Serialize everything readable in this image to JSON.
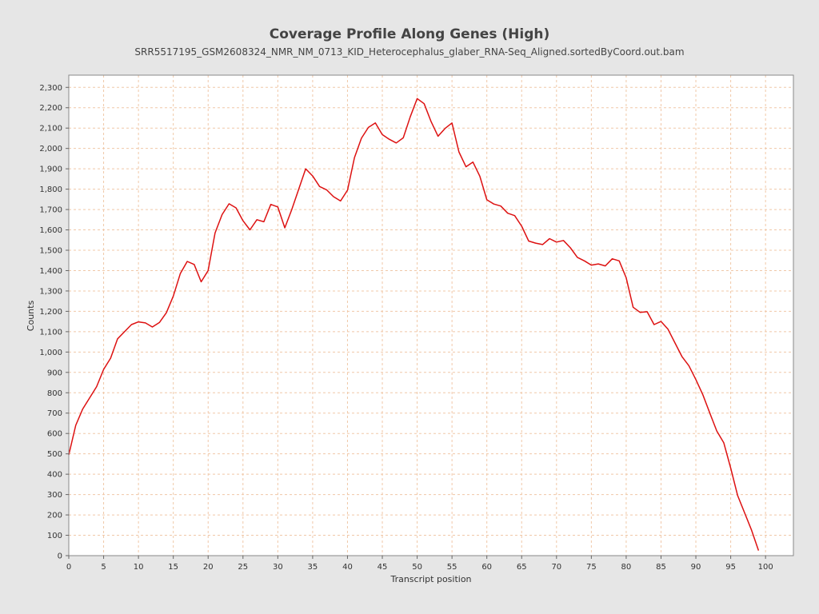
{
  "chart_data": {
    "type": "line",
    "title": "Coverage Profile Along Genes (High)",
    "subtitle": "SRR5517195_GSM2608324_NMR_NM_0713_KID_Heterocephalus_glaber_RNA-Seq_Aligned.sortedByCoord.out.bam",
    "xlabel": "Transcript position",
    "ylabel": "Counts",
    "xlim": [
      0,
      104
    ],
    "ylim": [
      0,
      2360
    ],
    "xticks": [
      0,
      5,
      10,
      15,
      20,
      25,
      30,
      35,
      40,
      45,
      50,
      55,
      60,
      65,
      70,
      75,
      80,
      85,
      90,
      95,
      100
    ],
    "xtick_labels": [
      "0",
      "5",
      "10",
      "15",
      "20",
      "25",
      "30",
      "35",
      "40",
      "45",
      "50",
      "55",
      "60",
      "65",
      "70",
      "75",
      "80",
      "85",
      "90",
      "95",
      "100"
    ],
    "yticks": [
      0,
      100,
      200,
      300,
      400,
      500,
      600,
      700,
      800,
      900,
      1000,
      1100,
      1200,
      1300,
      1400,
      1500,
      1600,
      1700,
      1800,
      1900,
      2000,
      2100,
      2200,
      2300
    ],
    "ytick_labels": [
      "0",
      "100",
      "200",
      "300",
      "400",
      "500",
      "600",
      "700",
      "800",
      "900",
      "1,000",
      "1,100",
      "1,200",
      "1,300",
      "1,400",
      "1,500",
      "1,600",
      "1,700",
      "1,800",
      "1,900",
      "2,000",
      "2,100",
      "2,200",
      "2,300"
    ],
    "grid": true,
    "line_color": "#dd1111",
    "grid_color": "#f0c8a8",
    "x": [
      0,
      1,
      2,
      3,
      4,
      5,
      6,
      7,
      8,
      9,
      10,
      11,
      12,
      13,
      14,
      15,
      16,
      17,
      18,
      19,
      20,
      21,
      22,
      23,
      24,
      25,
      26,
      27,
      28,
      29,
      30,
      31,
      32,
      33,
      34,
      35,
      36,
      37,
      38,
      39,
      40,
      41,
      42,
      43,
      44,
      45,
      46,
      47,
      48,
      49,
      50,
      51,
      52,
      53,
      54,
      55,
      56,
      57,
      58,
      59,
      60,
      61,
      62,
      63,
      64,
      65,
      66,
      67,
      68,
      69,
      70,
      71,
      72,
      73,
      74,
      75,
      76,
      77,
      78,
      79,
      80,
      81,
      82,
      83,
      84,
      85,
      86,
      87,
      88,
      89,
      90,
      91,
      92,
      93,
      94,
      95,
      96,
      97,
      98,
      99
    ],
    "values": [
      495,
      640,
      720,
      775,
      830,
      915,
      970,
      1065,
      1100,
      1135,
      1148,
      1143,
      1123,
      1145,
      1193,
      1275,
      1385,
      1445,
      1430,
      1345,
      1400,
      1585,
      1675,
      1728,
      1708,
      1645,
      1600,
      1650,
      1640,
      1725,
      1713,
      1610,
      1700,
      1800,
      1900,
      1865,
      1813,
      1797,
      1763,
      1742,
      1795,
      1955,
      2050,
      2103,
      2125,
      2068,
      2045,
      2027,
      2052,
      2155,
      2245,
      2220,
      2132,
      2060,
      2098,
      2125,
      1983,
      1910,
      1933,
      1863,
      1748,
      1727,
      1717,
      1682,
      1670,
      1618,
      1545,
      1535,
      1528,
      1557,
      1540,
      1548,
      1512,
      1465,
      1448,
      1427,
      1433,
      1423,
      1458,
      1448,
      1365,
      1220,
      1195,
      1198,
      1135,
      1150,
      1112,
      1045,
      978,
      933,
      865,
      790,
      700,
      612,
      555,
      430,
      295,
      210,
      125,
      25
    ]
  }
}
